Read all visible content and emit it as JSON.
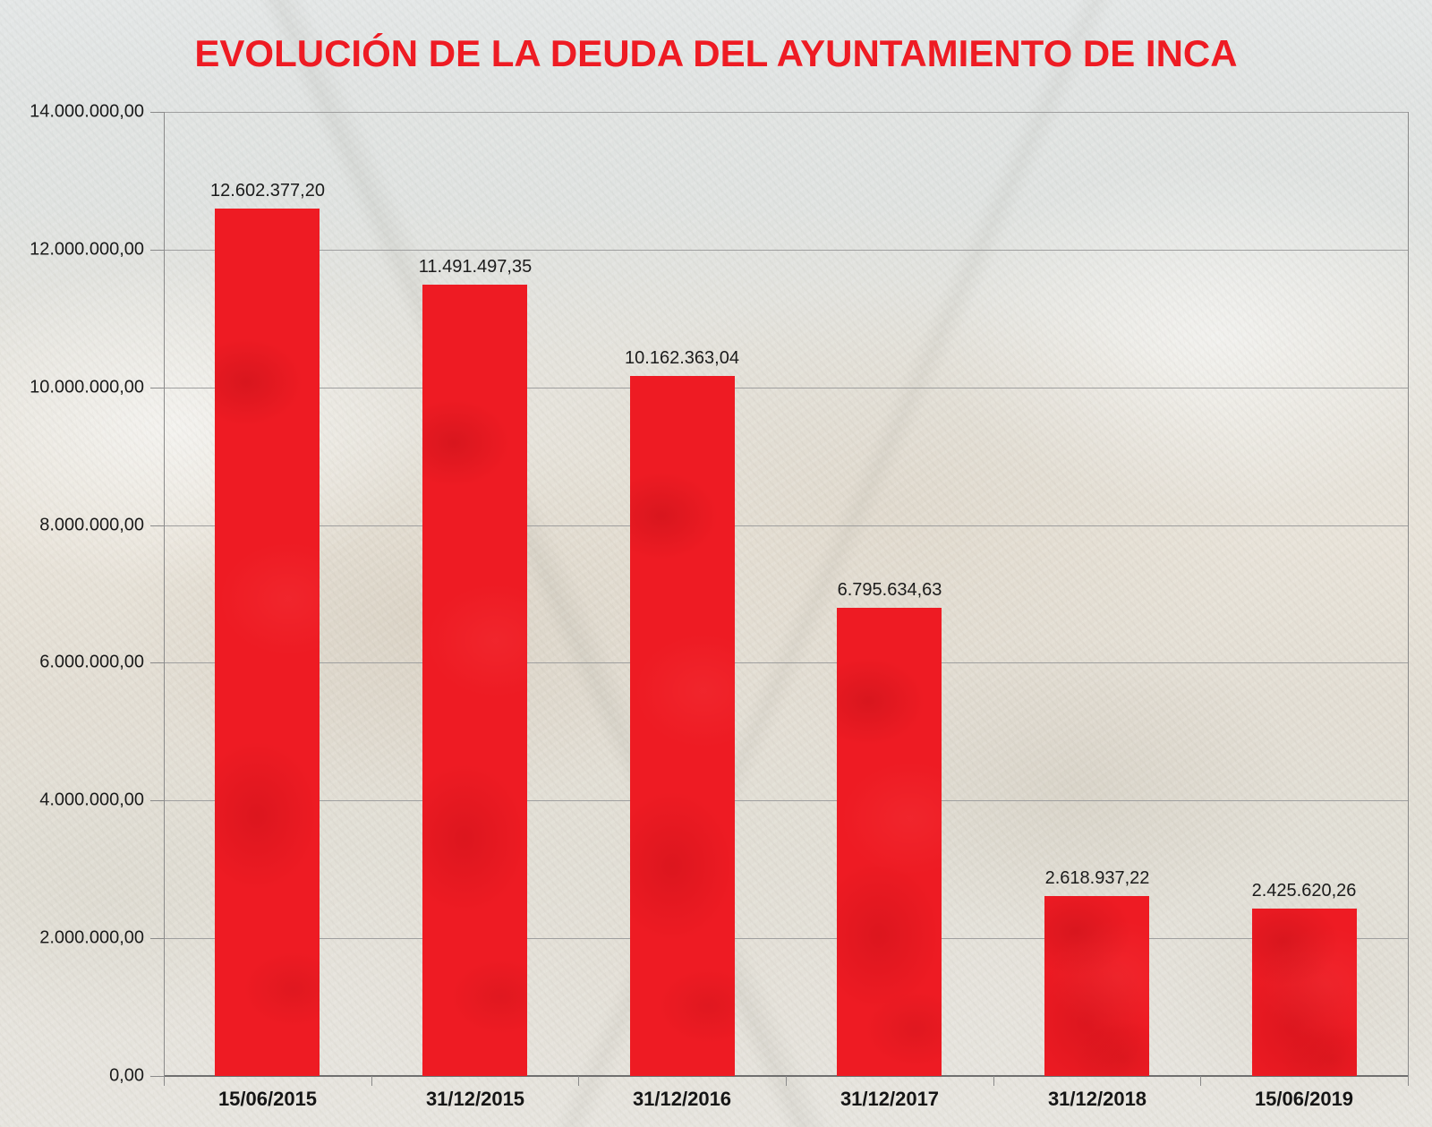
{
  "title": {
    "text": "EVOLUCIÓN DE LA DEUDA DEL AYUNTAMIENTO DE INCA"
  },
  "colors": {
    "accent_red": "#ee1b23",
    "grid_line": "#9f9f9f",
    "axis_line": "#6f6f6f",
    "label_text": "#1b1b1b"
  },
  "chart_data": {
    "type": "bar",
    "title": "EVOLUCIÓN DE LA DEUDA DEL AYUNTAMIENTO DE INCA",
    "categories": [
      "15/06/2015",
      "31/12/2015",
      "31/12/2016",
      "31/12/2017",
      "31/12/2018",
      "15/06/2019"
    ],
    "values": [
      12602377.2,
      11491497.35,
      10162363.04,
      6795634.63,
      2618937.22,
      2425620.26
    ],
    "value_labels": [
      "12.602.377,20",
      "11.491.497,35",
      "10.162.363,04",
      "6.795.634,63",
      "2.618.937,22",
      "2.425.620,26"
    ],
    "y_tick_labels": [
      "14.000.000,00",
      "12.000.000,00",
      "10.000.000,00",
      "8.000.000,00",
      "6.000.000,00",
      "4.000.000,00",
      "2.000.000,00",
      "0,00"
    ],
    "ylim": [
      0,
      14000000
    ],
    "y_step": 2000000,
    "grid": true,
    "legend": "none",
    "bar_color": "#ee1b23",
    "xlabel": "",
    "ylabel": ""
  }
}
